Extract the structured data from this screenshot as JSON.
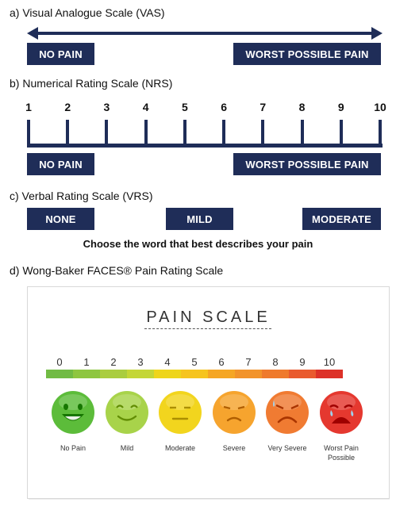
{
  "vas": {
    "title": "a)  Visual Analogue Scale (VAS)",
    "left_label": "NO PAIN",
    "right_label": "WORST POSSIBLE PAIN"
  },
  "nrs": {
    "title": "b)  Numerical Rating Scale (NRS)",
    "numbers": [
      "1",
      "2",
      "3",
      "4",
      "5",
      "6",
      "7",
      "8",
      "9",
      "10"
    ],
    "left_label": "NO PAIN",
    "right_label": "WORST POSSIBLE PAIN"
  },
  "vrs": {
    "title": "c)  Verbal Rating Scale (VRS)",
    "options": [
      "NONE",
      "MILD",
      "MODERATE"
    ],
    "caption": "Choose the word that best describes your pain"
  },
  "wong_baker": {
    "title": "d)  Wong-Baker FACES® Pain Rating Scale",
    "card_title": "PAIN SCALE",
    "numbers": [
      "0",
      "1",
      "2",
      "3",
      "4",
      "5",
      "6",
      "7",
      "8",
      "9",
      "10"
    ],
    "bar_colors": [
      "#71bb44",
      "#8ec640",
      "#aacd3f",
      "#c4d637",
      "#eed51b",
      "#f6c41e",
      "#f5a624",
      "#f2932a",
      "#ef7a2c",
      "#e95a2e",
      "#dd3128"
    ],
    "faces": [
      {
        "label": "No Pain",
        "color": "#5cbc3a",
        "expr": "happy"
      },
      {
        "label": "Mild",
        "color": "#a8d34a",
        "expr": "smile"
      },
      {
        "label": "Moderate",
        "color": "#f2d51e",
        "expr": "neutral"
      },
      {
        "label": "Severe",
        "color": "#f6a42e",
        "expr": "frown"
      },
      {
        "label": "Very Severe",
        "color": "#f07b32",
        "expr": "sad"
      },
      {
        "label": "Worst Pain Possible",
        "color": "#e5382f",
        "expr": "cry"
      }
    ]
  },
  "colors": {
    "navy": "#1f2d58"
  }
}
